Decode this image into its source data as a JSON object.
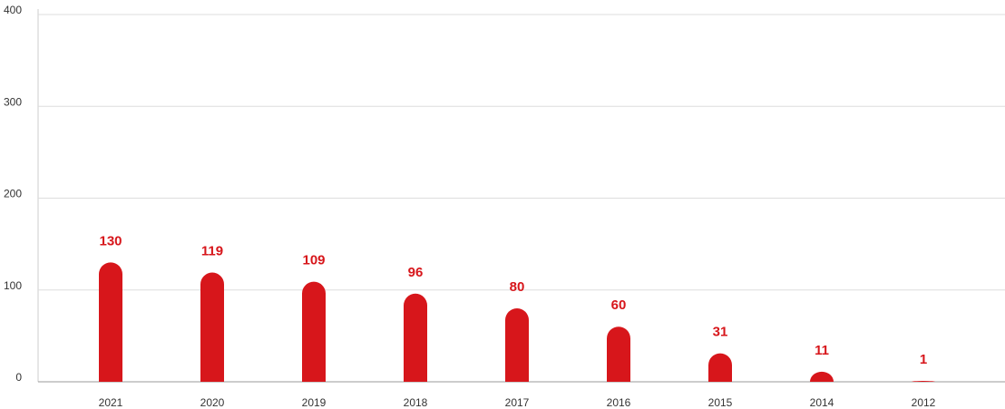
{
  "chart_data": {
    "type": "bar",
    "categories": [
      "2021",
      "2020",
      "2019",
      "2018",
      "2017",
      "2016",
      "2015",
      "2014",
      "2012"
    ],
    "values": [
      130,
      119,
      109,
      96,
      80,
      60,
      31,
      11,
      1
    ],
    "color": "#d7161b",
    "ylim": [
      0,
      400
    ],
    "yticks": [
      0,
      100,
      200,
      300,
      400
    ],
    "grid": true
  }
}
